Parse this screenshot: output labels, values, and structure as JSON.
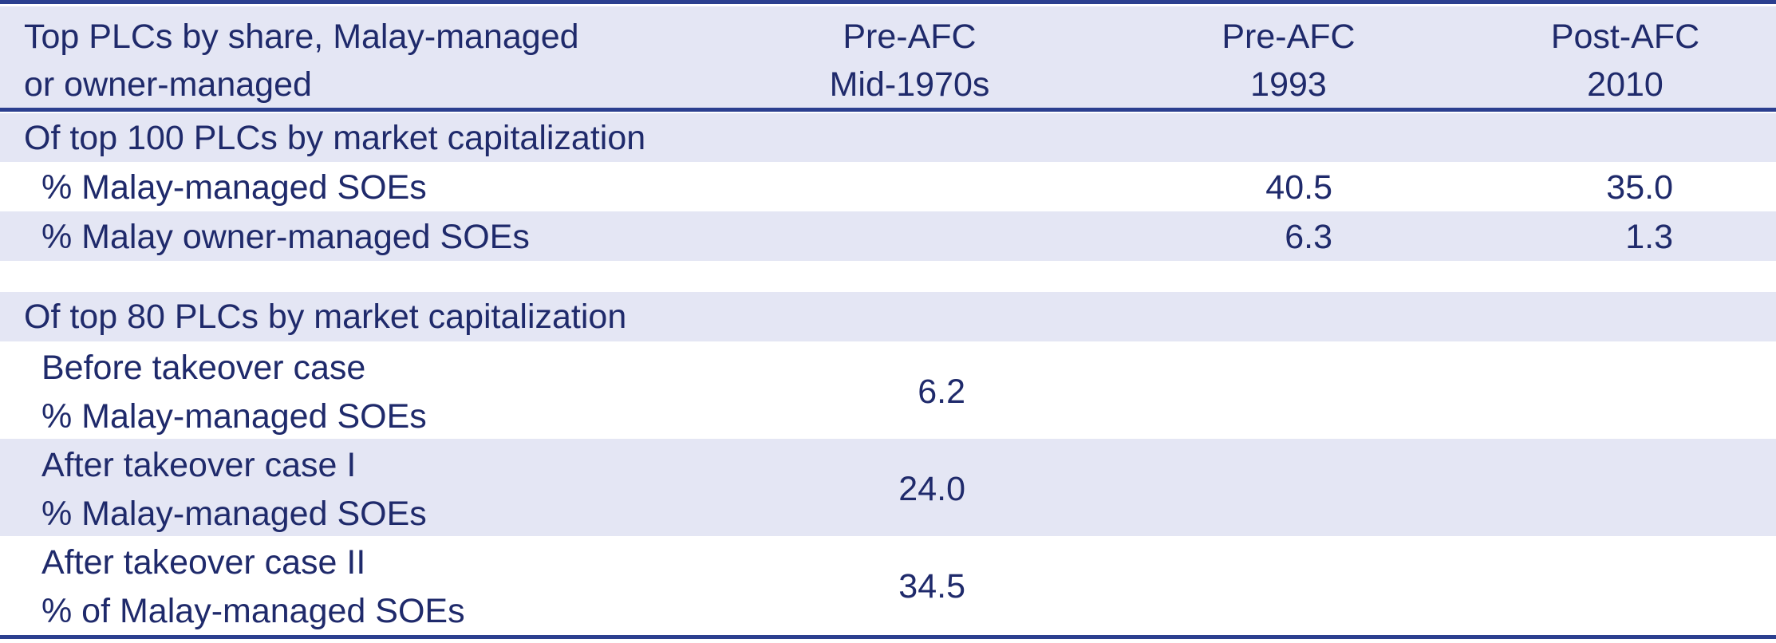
{
  "table": {
    "header": {
      "col0": [
        "Top PLCs by share, Malay-managed",
        "or owner-managed"
      ],
      "col1": [
        "Pre-AFC",
        "Mid-1970s"
      ],
      "col2": [
        "Pre-AFC",
        "1993"
      ],
      "col3": [
        "Post-AFC",
        "2010"
      ]
    },
    "section1": {
      "title": "Of top 100 PLCs by market capitalization",
      "rows": [
        {
          "label": "% Malay-managed SOEs",
          "v1993": "40.5",
          "v2010": "35.0"
        },
        {
          "label": "% Malay owner-managed SOEs",
          "v1993": "6.3",
          "v2010": "1.3"
        }
      ]
    },
    "section2": {
      "title": "Of top 80 PLCs by market capitalization",
      "rows": [
        {
          "label": [
            "Before takeover case",
            "% Malay-managed SOEs"
          ],
          "v1970s": "6.2"
        },
        {
          "label": [
            "After takeover case I",
            "% Malay-managed SOEs"
          ],
          "v1970s": "24.0"
        },
        {
          "label": [
            "After takeover case II",
            "% of Malay-managed SOEs"
          ],
          "v1970s": "34.5"
        }
      ]
    }
  }
}
